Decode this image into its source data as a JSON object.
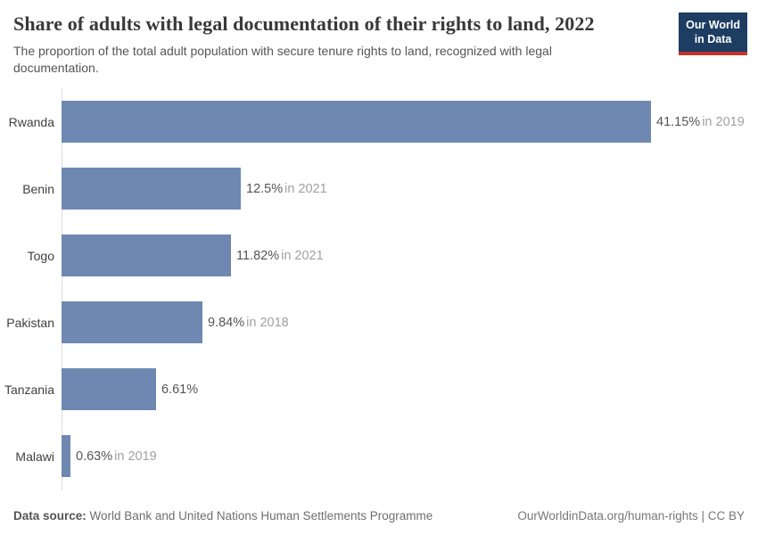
{
  "header": {
    "title": "Share of adults with legal documentation of their rights to land, 2022",
    "subtitle": "The proportion of the total adult population with secure tenure rights to land, recognized with legal documentation.",
    "logo": {
      "line1": "Our World",
      "line2": "in Data"
    }
  },
  "chart_data": {
    "type": "bar",
    "orientation": "horizontal",
    "title": "Share of adults with legal documentation of their rights to land, 2022",
    "categories": [
      "Rwanda",
      "Benin",
      "Togo",
      "Pakistan",
      "Tanzania",
      "Malawi"
    ],
    "values": [
      41.15,
      12.5,
      11.82,
      9.84,
      6.61,
      0.63
    ],
    "value_labels": [
      "41.15%",
      "12.5%",
      "11.82%",
      "9.84%",
      "6.61%",
      "0.63%"
    ],
    "year_labels": [
      "in 2019",
      "in 2021",
      "in 2021",
      "in 2018",
      "",
      "in 2019"
    ],
    "xlim": [
      0,
      41.15
    ],
    "unit": "%",
    "grid": false,
    "legend": "none",
    "bar_color": "#6e88b1",
    "axis_line_color": "#dedede"
  },
  "footer": {
    "source_label": "Data source:",
    "source_text": "World Bank and United Nations Human Settlements Programme",
    "credit": "OurWorldinData.org/human-rights | CC BY"
  }
}
